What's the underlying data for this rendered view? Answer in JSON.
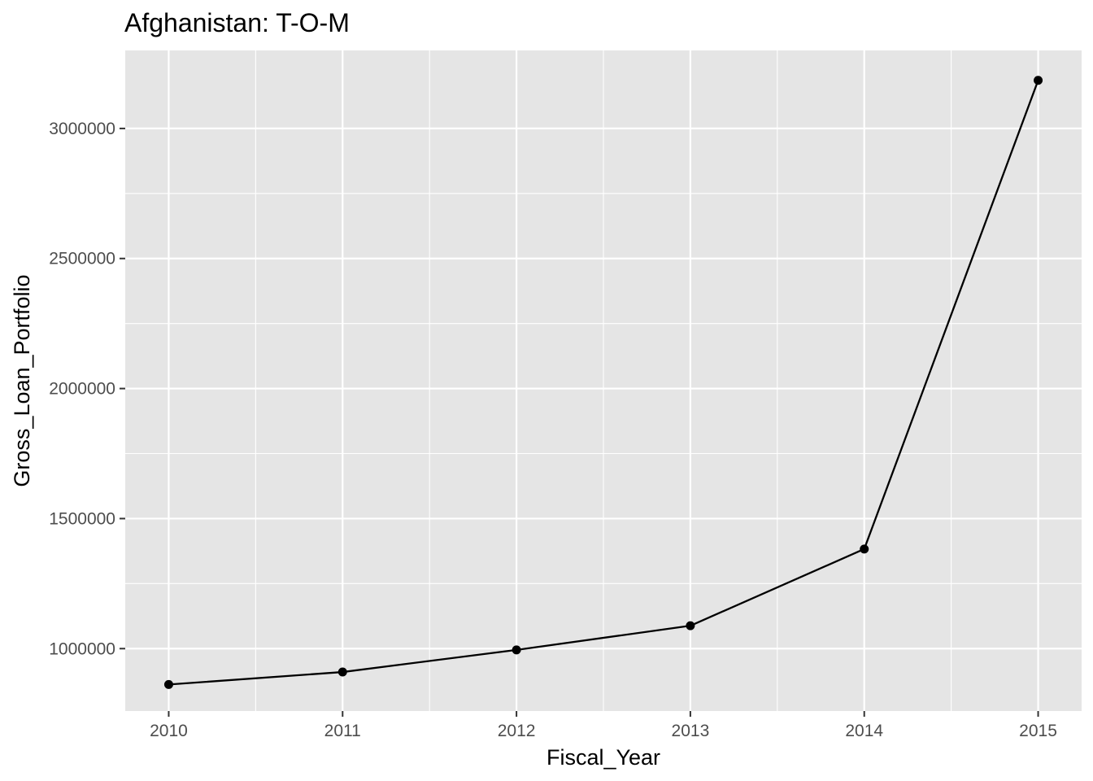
{
  "chart_data": {
    "type": "line",
    "title": "Afghanistan:  T-O-M",
    "xlabel": "Fiscal_Year",
    "ylabel": "Gross_Loan_Portfolio",
    "x": [
      2010,
      2011,
      2012,
      2013,
      2014,
      2015
    ],
    "x_tick_labels": [
      "2010",
      "2011",
      "2012",
      "2013",
      "2014",
      "2015"
    ],
    "y_tick_labels": [
      "1000000",
      "1500000",
      "2000000",
      "2500000",
      "3000000"
    ],
    "y_ticks": [
      1000000,
      1500000,
      2000000,
      2500000,
      3000000
    ],
    "series": [
      {
        "values": [
          862000,
          910000,
          995000,
          1088000,
          1383000,
          3185000
        ]
      }
    ],
    "xlim": [
      2009.75,
      2015.25
    ],
    "ylim": [
      760000,
      3300000
    ],
    "grid": true,
    "panel_background": "#e5e5e5",
    "grid_color": "#ffffff",
    "line_color": "#000000",
    "point_color": "#000000"
  }
}
